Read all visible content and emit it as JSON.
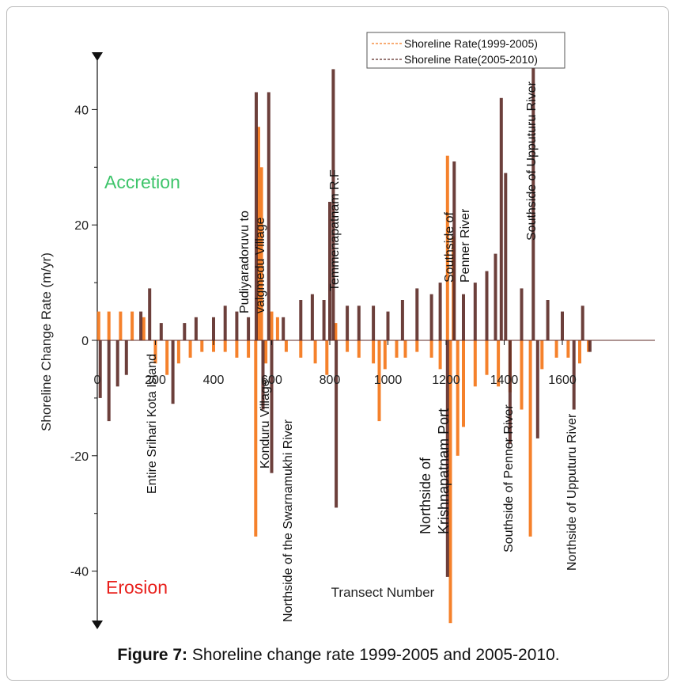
{
  "caption": {
    "prefix": "Figure 7:",
    "text": "Shoreline change rate 1999-2005 and 2005-2010."
  },
  "chart_data": {
    "type": "bar",
    "ylabel": "Shoreline Change Rate (m/yr)",
    "xlabel": "Transect Number",
    "ylim": [
      -50,
      50
    ],
    "xlim": [
      0,
      1700
    ],
    "yticks": [
      40,
      20,
      0,
      -20,
      -40
    ],
    "xticks": [
      0,
      200,
      400,
      600,
      800,
      1000,
      1200,
      1400,
      1600
    ],
    "legend": {
      "position": "top-right"
    },
    "region_labels": {
      "accretion": "Accretion",
      "erosion": "Erosion"
    },
    "colors": {
      "s1": "#f47a20",
      "s2": "#5c2a26",
      "accretion": "#3dc46a",
      "erosion": "#e8201c"
    },
    "series": [
      {
        "name": "Shoreline Rate(1999-2005)",
        "color": "#f47a20",
        "points": [
          [
            5,
            5
          ],
          [
            40,
            5
          ],
          [
            80,
            5
          ],
          [
            120,
            5
          ],
          [
            160,
            4
          ],
          [
            200,
            -4
          ],
          [
            240,
            -6
          ],
          [
            280,
            -4
          ],
          [
            320,
            -3
          ],
          [
            360,
            -2
          ],
          [
            400,
            -2
          ],
          [
            440,
            -2
          ],
          [
            480,
            -3
          ],
          [
            520,
            -3
          ],
          [
            545,
            -34
          ],
          [
            555,
            37
          ],
          [
            565,
            30
          ],
          [
            580,
            -4
          ],
          [
            600,
            5
          ],
          [
            620,
            4
          ],
          [
            650,
            -2
          ],
          [
            700,
            -3
          ],
          [
            750,
            -4
          ],
          [
            790,
            -6
          ],
          [
            820,
            3
          ],
          [
            860,
            -2
          ],
          [
            900,
            -3
          ],
          [
            950,
            -4
          ],
          [
            970,
            -14
          ],
          [
            990,
            -5
          ],
          [
            1030,
            -3
          ],
          [
            1060,
            -3
          ],
          [
            1100,
            -2
          ],
          [
            1150,
            -3
          ],
          [
            1180,
            -5
          ],
          [
            1205,
            32
          ],
          [
            1215,
            -49
          ],
          [
            1225,
            18
          ],
          [
            1240,
            -20
          ],
          [
            1260,
            -15
          ],
          [
            1300,
            -8
          ],
          [
            1340,
            -6
          ],
          [
            1380,
            -8
          ],
          [
            1420,
            -9
          ],
          [
            1460,
            -12
          ],
          [
            1490,
            -34
          ],
          [
            1530,
            -5
          ],
          [
            1580,
            -3
          ],
          [
            1620,
            -3
          ],
          [
            1660,
            -4
          ],
          [
            1690,
            -2
          ]
        ]
      },
      {
        "name": "Shoreline Rate(2005-2010)",
        "color": "#5c2a26",
        "points": [
          [
            10,
            -10
          ],
          [
            40,
            -14
          ],
          [
            70,
            -8
          ],
          [
            100,
            -6
          ],
          [
            150,
            5
          ],
          [
            180,
            9
          ],
          [
            220,
            3
          ],
          [
            260,
            -11
          ],
          [
            300,
            3
          ],
          [
            340,
            4
          ],
          [
            400,
            4
          ],
          [
            440,
            6
          ],
          [
            480,
            5
          ],
          [
            520,
            4
          ],
          [
            547,
            43
          ],
          [
            570,
            -12
          ],
          [
            590,
            43
          ],
          [
            600,
            -23
          ],
          [
            640,
            4
          ],
          [
            700,
            7
          ],
          [
            740,
            8
          ],
          [
            780,
            7
          ],
          [
            800,
            24
          ],
          [
            812,
            47
          ],
          [
            822,
            -29
          ],
          [
            860,
            6
          ],
          [
            900,
            6
          ],
          [
            950,
            6
          ],
          [
            1000,
            5
          ],
          [
            1050,
            7
          ],
          [
            1100,
            9
          ],
          [
            1150,
            8
          ],
          [
            1180,
            10
          ],
          [
            1205,
            -41
          ],
          [
            1228,
            31
          ],
          [
            1260,
            8
          ],
          [
            1300,
            10
          ],
          [
            1340,
            12
          ],
          [
            1370,
            15
          ],
          [
            1390,
            42
          ],
          [
            1405,
            29
          ],
          [
            1420,
            -18
          ],
          [
            1460,
            9
          ],
          [
            1500,
            48
          ],
          [
            1515,
            -17
          ],
          [
            1550,
            7
          ],
          [
            1600,
            5
          ],
          [
            1640,
            -12
          ],
          [
            1670,
            6
          ],
          [
            1695,
            -2
          ]
        ]
      }
    ],
    "annotations": [
      {
        "text": "Entire Srihari Kota Island",
        "x": 180,
        "y": -2,
        "side": "below"
      },
      {
        "text": "Pudiyaradoruvu to",
        "x": 415,
        "y": 3,
        "side": "above"
      },
      {
        "text": "valgmedu Village",
        "x": 445,
        "y": 3,
        "side": "above"
      },
      {
        "text": "Konduru Village",
        "x": 525,
        "y": -3,
        "side": "below"
      },
      {
        "text": "Northside of the Swarnamukhi River",
        "x": 580,
        "y": -14,
        "side": "below"
      },
      {
        "text": "Temmenapatnam R.F",
        "x": 735,
        "y": 10,
        "side": "above"
      },
      {
        "text": "Northside of",
        "x": 1025,
        "y": -5,
        "side": "below"
      },
      {
        "text": "Krishnapatnam Port",
        "x": 1070,
        "y": -5,
        "side": "below"
      },
      {
        "text": "Southside of",
        "x": 1095,
        "y": 10,
        "side": "above"
      },
      {
        "text": "Penner River",
        "x": 1140,
        "y": 10,
        "side": "above"
      },
      {
        "text": "Southside of Penner River",
        "x": 1265,
        "y": -8,
        "side": "below"
      },
      {
        "text": "Southside of Upputuru River",
        "x": 1325,
        "y": 17,
        "side": "above"
      },
      {
        "text": "Northside of Upputuru River",
        "x": 1470,
        "y": -11,
        "side": "below"
      }
    ]
  }
}
